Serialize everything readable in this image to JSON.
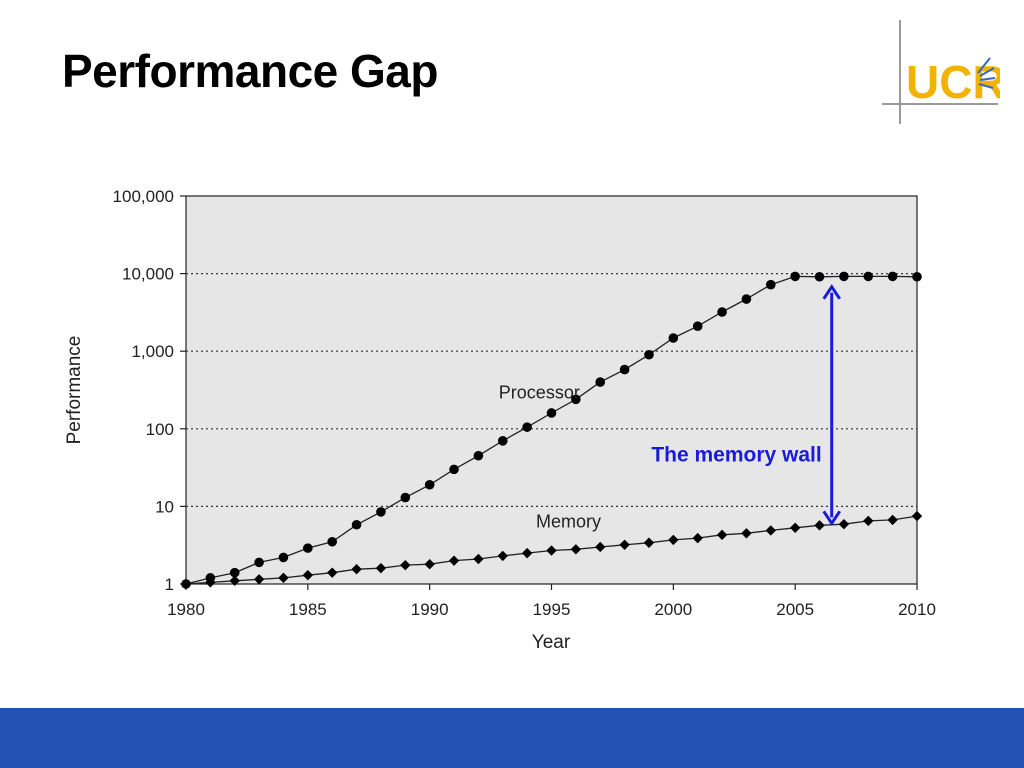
{
  "slide": {
    "title": "Performance Gap",
    "logo_text": "UCR"
  },
  "colors": {
    "logo_yellow": "#f1b300",
    "logo_blue": "#2d6cc0",
    "footer_blue": "#2250b3",
    "annotation_blue": "#1a1adb",
    "plot_background": "#e6e6e6"
  },
  "chart_data": {
    "type": "line",
    "xlabel": "Year",
    "ylabel": "Performance",
    "xlim": [
      1980,
      2010
    ],
    "ylim": [
      1,
      100000
    ],
    "yscale": "log",
    "grid": "horizontal dotted at major ticks",
    "x_ticks": [
      1980,
      1985,
      1990,
      1995,
      2000,
      2005,
      2010
    ],
    "x_tick_labels": [
      "1980",
      "1985",
      "1990",
      "1995",
      "2000",
      "2005",
      "2010"
    ],
    "y_ticks": [
      1,
      10,
      100,
      1000,
      10000,
      100000
    ],
    "y_tick_labels": [
      "1",
      "10",
      "100",
      "1,000",
      "10,000",
      "100,000"
    ],
    "series": [
      {
        "name": "Processor",
        "marker": "circle",
        "x": [
          1980,
          1981,
          1982,
          1983,
          1984,
          1985,
          1986,
          1987,
          1988,
          1989,
          1990,
          1991,
          1992,
          1993,
          1994,
          1995,
          1996,
          1997,
          1998,
          1999,
          2000,
          2001,
          2002,
          2003,
          2004,
          2005,
          2006,
          2007,
          2008,
          2009,
          2010
        ],
        "values": [
          1,
          1.2,
          1.4,
          1.9,
          2.2,
          2.9,
          3.5,
          5.8,
          8.5,
          13,
          19,
          30,
          45,
          70,
          105,
          160,
          240,
          400,
          580,
          900,
          1480,
          2100,
          3200,
          4700,
          7200,
          9200,
          9100,
          9200,
          9200,
          9200,
          9100
        ]
      },
      {
        "name": "Memory",
        "marker": "diamond",
        "x": [
          1980,
          1981,
          1982,
          1983,
          1984,
          1985,
          1986,
          1987,
          1988,
          1989,
          1990,
          1991,
          1992,
          1993,
          1994,
          1995,
          1996,
          1997,
          1998,
          1999,
          2000,
          2001,
          2002,
          2003,
          2004,
          2005,
          2006,
          2007,
          2008,
          2009,
          2010
        ],
        "values": [
          1,
          1.05,
          1.1,
          1.15,
          1.2,
          1.3,
          1.4,
          1.55,
          1.6,
          1.75,
          1.8,
          2.0,
          2.1,
          2.3,
          2.5,
          2.7,
          2.8,
          3.0,
          3.2,
          3.4,
          3.7,
          3.9,
          4.3,
          4.5,
          4.9,
          5.3,
          5.7,
          5.9,
          6.5,
          6.7,
          7.5
        ]
      }
    ],
    "annotations": [
      {
        "text": "The memory wall",
        "x": 2006.5,
        "y_from": 9100,
        "y_to": 5.7,
        "color": "#1a1adb"
      }
    ]
  }
}
